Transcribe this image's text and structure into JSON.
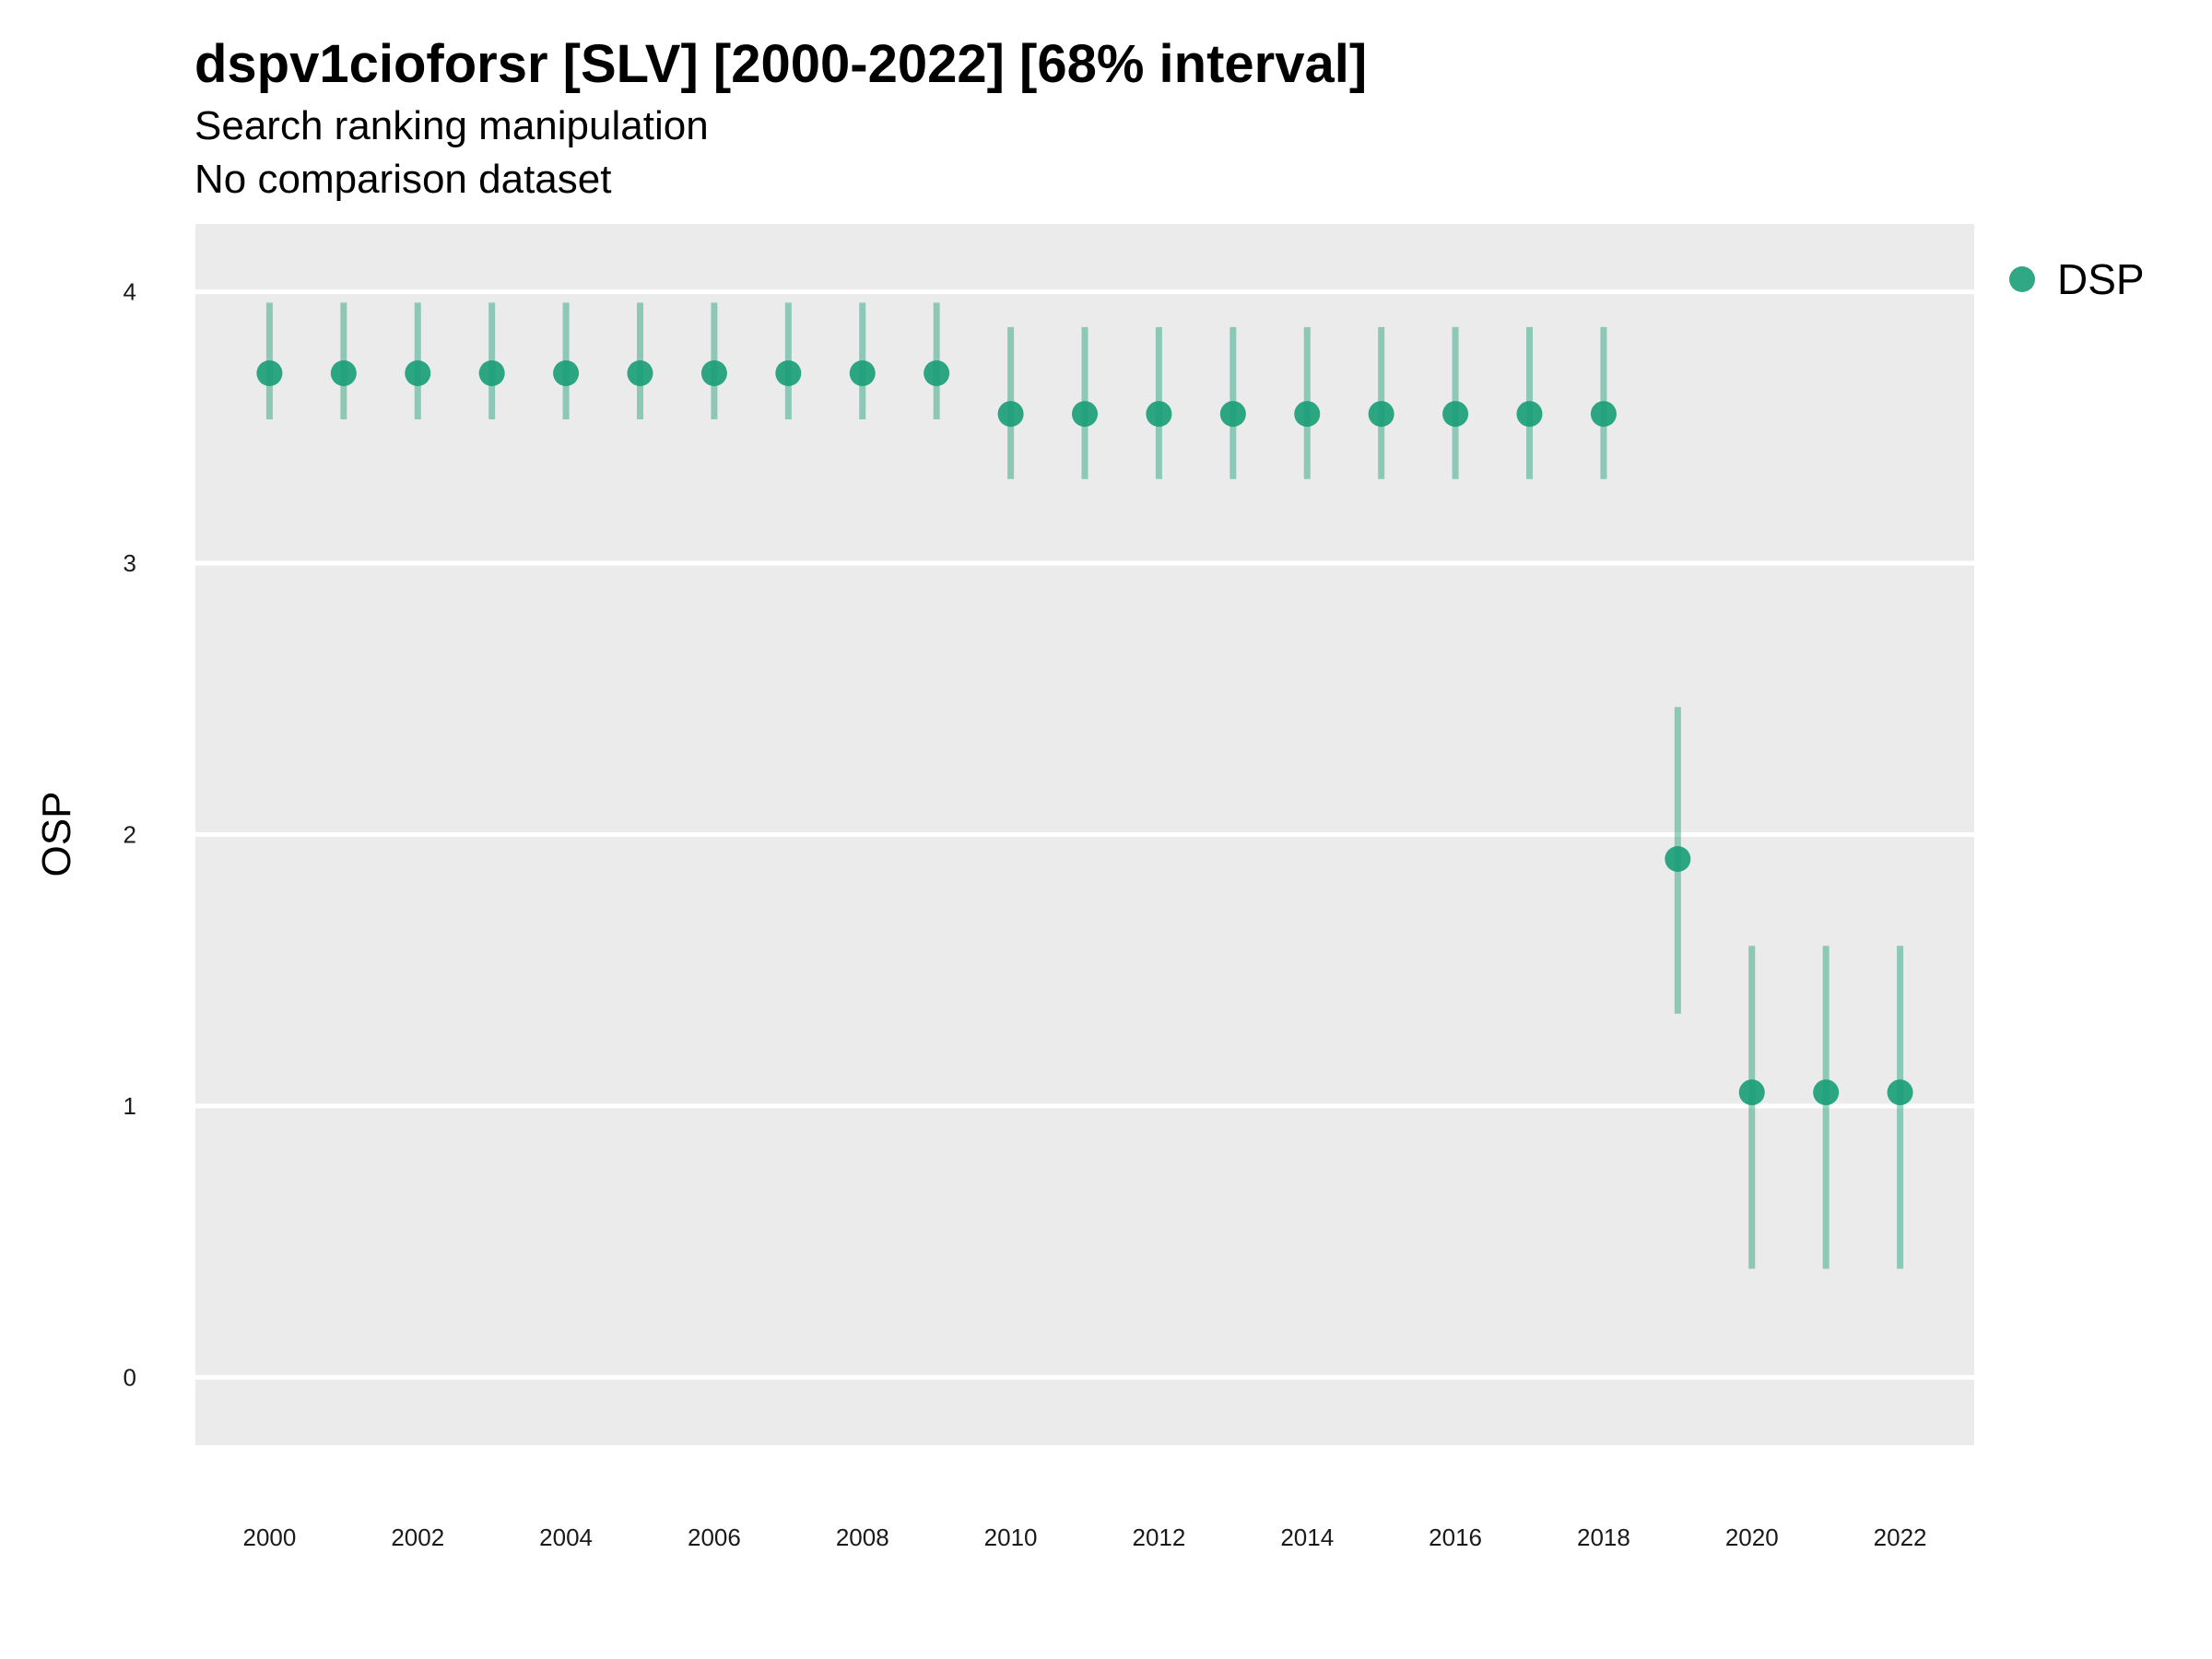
{
  "title": "dspv1cioforsr [SLV] [2000-2022] [68% interval]",
  "subtitle": "Search ranking manipulation",
  "subtitle2": "No comparison dataset",
  "colors": {
    "panel": "#ebebeb",
    "grid": "#ffffff",
    "series": "#1b9e77"
  },
  "chart_data": {
    "type": "scatter",
    "title": "dspv1cioforsr [SLV] [2000-2022] [68% interval]",
    "ylabel": "OSP",
    "xlabel": "",
    "x_ticks": [
      "2000",
      "2002",
      "2004",
      "2006",
      "2008",
      "2010",
      "2012",
      "2014",
      "2016",
      "2018",
      "2020",
      "2022"
    ],
    "y_ticks": [
      "0",
      "1",
      "2",
      "3",
      "4"
    ],
    "xlim": [
      1999,
      2023
    ],
    "ylim": [
      -0.25,
      4.25
    ],
    "grid": true,
    "legend_position": "top-right",
    "series": [
      {
        "name": "DSP",
        "color": "#1b9e77",
        "x": [
          2000,
          2001,
          2002,
          2003,
          2004,
          2005,
          2006,
          2007,
          2008,
          2009,
          2010,
          2011,
          2012,
          2013,
          2014,
          2015,
          2016,
          2017,
          2018,
          2019,
          2020,
          2021,
          2022
        ],
        "y": [
          3.7,
          3.7,
          3.7,
          3.7,
          3.7,
          3.7,
          3.7,
          3.7,
          3.7,
          3.7,
          3.55,
          3.55,
          3.55,
          3.55,
          3.55,
          3.55,
          3.55,
          3.55,
          3.55,
          1.91,
          1.05,
          1.05,
          1.05
        ],
        "lower": [
          3.53,
          3.53,
          3.53,
          3.53,
          3.53,
          3.53,
          3.53,
          3.53,
          3.53,
          3.53,
          3.31,
          3.31,
          3.31,
          3.31,
          3.31,
          3.31,
          3.31,
          3.31,
          3.31,
          1.34,
          0.4,
          0.4,
          0.4
        ],
        "upper": [
          3.96,
          3.96,
          3.96,
          3.96,
          3.96,
          3.96,
          3.96,
          3.96,
          3.96,
          3.96,
          3.87,
          3.87,
          3.87,
          3.87,
          3.87,
          3.87,
          3.87,
          3.87,
          3.87,
          2.47,
          1.59,
          1.59,
          1.59
        ]
      }
    ]
  }
}
